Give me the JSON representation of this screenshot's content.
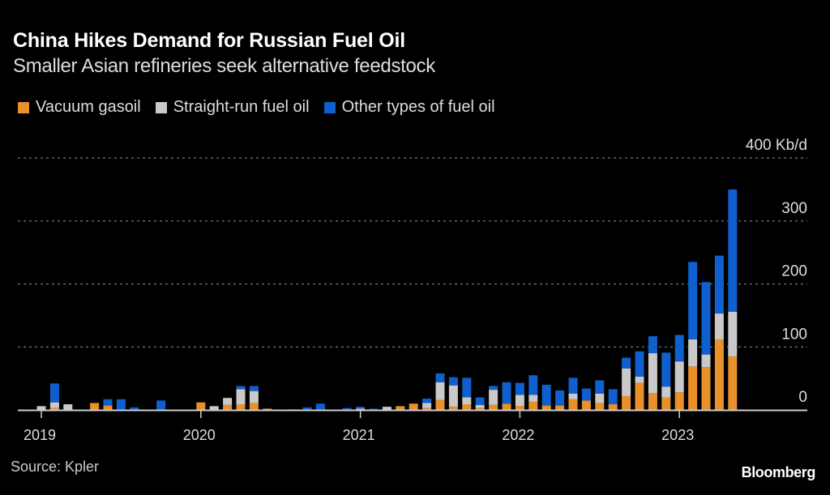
{
  "header": {
    "title": "China Hikes Demand for Russian Fuel Oil",
    "subtitle": "Smaller Asian refineries seek alternative feedstock"
  },
  "footer": {
    "source": "Source: Kpler",
    "brand": "Bloomberg"
  },
  "colors": {
    "background": "#000000",
    "vacuum_gasoil": "#e8912b",
    "straight_run": "#c9c9c9",
    "other": "#0f5fce",
    "grid": "#777777",
    "axis": "#cccccc"
  },
  "chart_data": {
    "type": "bar",
    "stacked": true,
    "title": "China Hikes Demand for Russian Fuel Oil",
    "subtitle": "Smaller Asian refineries seek alternative feedstock",
    "xlabel": "",
    "ylabel": "Kb/d",
    "unit_label": "400 Kb/d",
    "ylim": [
      0,
      400
    ],
    "yticks": [
      0,
      100,
      200,
      300,
      400
    ],
    "ytick_labels": [
      "0",
      "100",
      "200",
      "300",
      "400 Kb/d"
    ],
    "xtick_labels": [
      "2019",
      "2020",
      "2021",
      "2022",
      "2023"
    ],
    "grid": true,
    "legend_position": "top-left",
    "categories": [
      "2019-01",
      "2019-02",
      "2019-03",
      "2019-04",
      "2019-05",
      "2019-06",
      "2019-07",
      "2019-08",
      "2019-09",
      "2019-10",
      "2019-11",
      "2019-12",
      "2020-01",
      "2020-02",
      "2020-03",
      "2020-04",
      "2020-05",
      "2020-06",
      "2020-07",
      "2020-08",
      "2020-09",
      "2020-10",
      "2020-11",
      "2020-12",
      "2021-01",
      "2021-02",
      "2021-03",
      "2021-04",
      "2021-05",
      "2021-06",
      "2021-07",
      "2021-08",
      "2021-09",
      "2021-10",
      "2021-11",
      "2021-12",
      "2022-01",
      "2022-02",
      "2022-03",
      "2022-04",
      "2022-05",
      "2022-06",
      "2022-07",
      "2022-08",
      "2022-09",
      "2022-10",
      "2022-11",
      "2022-12",
      "2023-01",
      "2023-02",
      "2023-03",
      "2023-04",
      "2023-05"
    ],
    "series": [
      {
        "name": "Vacuum gasoil",
        "color": "#e8912b",
        "values": [
          0,
          3,
          0,
          0,
          11,
          7,
          0,
          0,
          0,
          0,
          0,
          0,
          12,
          0,
          8,
          9,
          11,
          2,
          0,
          0,
          0,
          0,
          0,
          0,
          0,
          0,
          0,
          6,
          10,
          3,
          16,
          5,
          9,
          3,
          8,
          10,
          6,
          13,
          7,
          7,
          17,
          15,
          11,
          9,
          22,
          43,
          27,
          20,
          28,
          69,
          68,
          112,
          85
        ]
      },
      {
        "name": "Straight-run fuel oil",
        "color": "#c9c9c9",
        "values": [
          6,
          9,
          9,
          0,
          0,
          0,
          0,
          0,
          0,
          0,
          0,
          0,
          0,
          6,
          11,
          24,
          19,
          0,
          0,
          0,
          0,
          0,
          0,
          0,
          2,
          0,
          5,
          0,
          0,
          8,
          28,
          34,
          11,
          5,
          24,
          0,
          18,
          11,
          0,
          0,
          9,
          0,
          15,
          0,
          44,
          10,
          63,
          17,
          49,
          43,
          20,
          41,
          71
        ]
      },
      {
        "name": "Other types of fuel oil",
        "color": "#0f5fce",
        "values": [
          0,
          30,
          0,
          0,
          0,
          10,
          17,
          4,
          0,
          15,
          0,
          0,
          0,
          0,
          0,
          5,
          8,
          0,
          0,
          1,
          4,
          10,
          0,
          3,
          3,
          2,
          0,
          0,
          0,
          7,
          14,
          13,
          31,
          12,
          6,
          34,
          19,
          31,
          33,
          24,
          25,
          19,
          21,
          24,
          17,
          40,
          27,
          54,
          42,
          123,
          115,
          92,
          194
        ]
      }
    ]
  }
}
